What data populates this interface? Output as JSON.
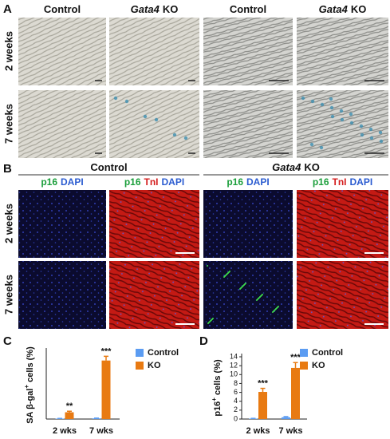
{
  "panels": {
    "a": {
      "label": "A",
      "columns": [
        [
          "Control"
        ],
        [
          "Gata4",
          "KO"
        ],
        [
          "Control"
        ],
        [
          "Gata4",
          "KO"
        ]
      ],
      "rows": [
        "2 weeks",
        "7 weeks"
      ]
    },
    "b": {
      "label": "B",
      "groups": [
        [
          "Control"
        ],
        [
          "Gata4",
          "KO"
        ]
      ],
      "stains": [
        [
          "p16",
          "DAPI"
        ],
        [
          "p16",
          "TnI",
          "DAPI"
        ],
        [
          "p16",
          "DAPI"
        ],
        [
          "p16",
          "TnI",
          "DAPI"
        ]
      ],
      "rows": [
        "2 weeks",
        "7 weeks"
      ]
    }
  },
  "chart_data": [
    {
      "type": "bar",
      "panel": "C",
      "ylabel": [
        "SA β-gal",
        "+",
        " cells (%)"
      ],
      "categories": [
        "2 wks",
        "7 wks"
      ],
      "ylim": [
        0,
        8
      ],
      "series": [
        {
          "name": "Control",
          "color": "#5b9cf2",
          "values": [
            0.05,
            0.08
          ],
          "errors": [
            0.02,
            0.03
          ]
        },
        {
          "name": "KO",
          "color": "#e87a12",
          "values": [
            0.8,
            6.9
          ],
          "errors": [
            0.12,
            0.5
          ],
          "significance": [
            "**",
            "***"
          ]
        }
      ]
    },
    {
      "type": "bar",
      "panel": "D",
      "ylabel": [
        "p16",
        "+",
        " cells (%)"
      ],
      "categories": [
        "2 wks",
        "7 wks"
      ],
      "ylim": [
        0,
        14
      ],
      "yticks": [
        0,
        2,
        4,
        6,
        8,
        10,
        12,
        14
      ],
      "series": [
        {
          "name": "Control",
          "color": "#5b9cf2",
          "values": [
            0.1,
            0.4
          ],
          "errors": [
            0.05,
            0.15
          ]
        },
        {
          "name": "KO",
          "color": "#e87a12",
          "values": [
            6.1,
            11.5
          ],
          "errors": [
            0.8,
            1.2
          ],
          "significance": [
            "***",
            "***"
          ]
        }
      ]
    }
  ]
}
